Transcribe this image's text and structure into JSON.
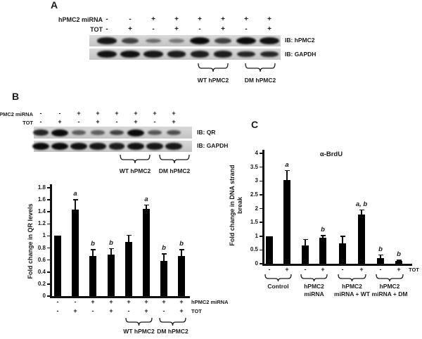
{
  "figure": {
    "panels": {
      "a": {
        "label": "A",
        "condition_rows": [
          {
            "label": "hPMC2 miRNA",
            "values": [
              "-",
              "-",
              "+",
              "+",
              "+",
              "+",
              "+",
              "+"
            ]
          },
          {
            "label": "TOT",
            "values": [
              "-",
              "+",
              "-",
              "+",
              "-",
              "+",
              "-",
              "+"
            ]
          }
        ],
        "blots": [
          {
            "label": "IB: hPMC2",
            "bands": [
              0.9,
              0.6,
              0.28,
              0.22,
              1.0,
              0.6,
              1.0,
              0.95
            ]
          },
          {
            "label": "IB: GAPDH",
            "bands": [
              0.95,
              0.95,
              0.9,
              0.85,
              0.85,
              0.85,
              0.8,
              0.8
            ]
          }
        ],
        "brackets": [
          {
            "label": "WT hPMC2"
          },
          {
            "label": "DM hPMC2"
          }
        ]
      },
      "b": {
        "label": "B",
        "condition_rows": [
          {
            "label": "hPMC2 miRNA",
            "values": [
              "-",
              "-",
              "+",
              "+",
              "+",
              "+",
              "+",
              "+"
            ]
          },
          {
            "label": "TOT",
            "values": [
              "-",
              "+",
              "-",
              "+",
              "-",
              "+",
              "-",
              "+"
            ]
          }
        ],
        "blots": [
          {
            "label": "IB: QR",
            "bands": [
              0.8,
              1.0,
              0.4,
              0.38,
              0.6,
              1.0,
              0.45,
              0.5
            ]
          },
          {
            "label": "IB: GAPDH",
            "bands": [
              1.0,
              1.0,
              0.95,
              0.9,
              0.85,
              0.95,
              0.9,
              0.9
            ]
          }
        ],
        "brackets": [
          {
            "label": "WT hPMC2"
          },
          {
            "label": "DM hPMC2"
          }
        ]
      },
      "c": {
        "label": "C"
      }
    }
  },
  "chart_data": [
    {
      "id": "qr_chart",
      "panel": "B",
      "type": "bar",
      "title": "",
      "ylabel": "Fold change in QR levels",
      "xlabel": "",
      "ylim": [
        0,
        1.8
      ],
      "yticks": [
        "0",
        "0.2",
        "0.4",
        "0.6",
        "0.8",
        "1",
        "1.2",
        "1.4",
        "1.6",
        "1.8"
      ],
      "values": [
        1.0,
        1.44,
        0.67,
        0.69,
        0.9,
        1.45,
        0.58,
        0.67
      ],
      "errors": [
        0,
        0.17,
        0.11,
        0.11,
        0.12,
        0.07,
        0.13,
        0.11
      ],
      "sig_labels": [
        "",
        "a",
        "b",
        "b",
        "",
        "a",
        "b",
        "b"
      ],
      "x_rows": [
        {
          "label": "hPMC2 miRNA",
          "values": [
            "-",
            "-",
            "+",
            "+",
            "+",
            "+",
            "+",
            "+"
          ]
        },
        {
          "label": "TOT",
          "values": [
            "-",
            "+",
            "-",
            "+",
            "-",
            "+",
            "-",
            "+"
          ]
        }
      ],
      "group_brackets": [
        {
          "label": "WT hPMC2"
        },
        {
          "label": "DM hPMC2"
        }
      ],
      "bar_color": "#000000",
      "grid": false,
      "legend": null
    },
    {
      "id": "brdu_chart",
      "panel": "C",
      "type": "bar",
      "title": "α-BrdU",
      "ylabel": "Fold change in DNA strand break",
      "xlabel": "",
      "ylim": [
        0,
        4
      ],
      "yticks": [
        "0",
        "0.5",
        "1",
        "1.5",
        "2",
        "2.5",
        "3",
        "3.5",
        "4"
      ],
      "values": [
        1.0,
        3.03,
        0.67,
        0.94,
        0.74,
        1.78,
        0.2,
        0.1
      ],
      "errors": [
        0,
        0.37,
        0.23,
        0.1,
        0.27,
        0.19,
        0.14,
        0.05
      ],
      "sig_labels": [
        "",
        "a",
        "",
        "b",
        "",
        "a, b",
        "b",
        "b"
      ],
      "x_rows": [
        {
          "label": "TOT",
          "values": [
            "-",
            "+",
            "-",
            "+",
            "-",
            "+",
            "-",
            "+"
          ]
        }
      ],
      "groups": [
        {
          "lines": [
            "Control"
          ]
        },
        {
          "lines": [
            "hPMC2",
            "miRNA"
          ]
        },
        {
          "lines": [
            "hPMC2",
            "miRNA + WT"
          ]
        },
        {
          "lines": [
            "hPMC2",
            "miRNA + DM"
          ]
        }
      ],
      "bar_color": "#000000",
      "grid": false,
      "legend": null
    }
  ]
}
